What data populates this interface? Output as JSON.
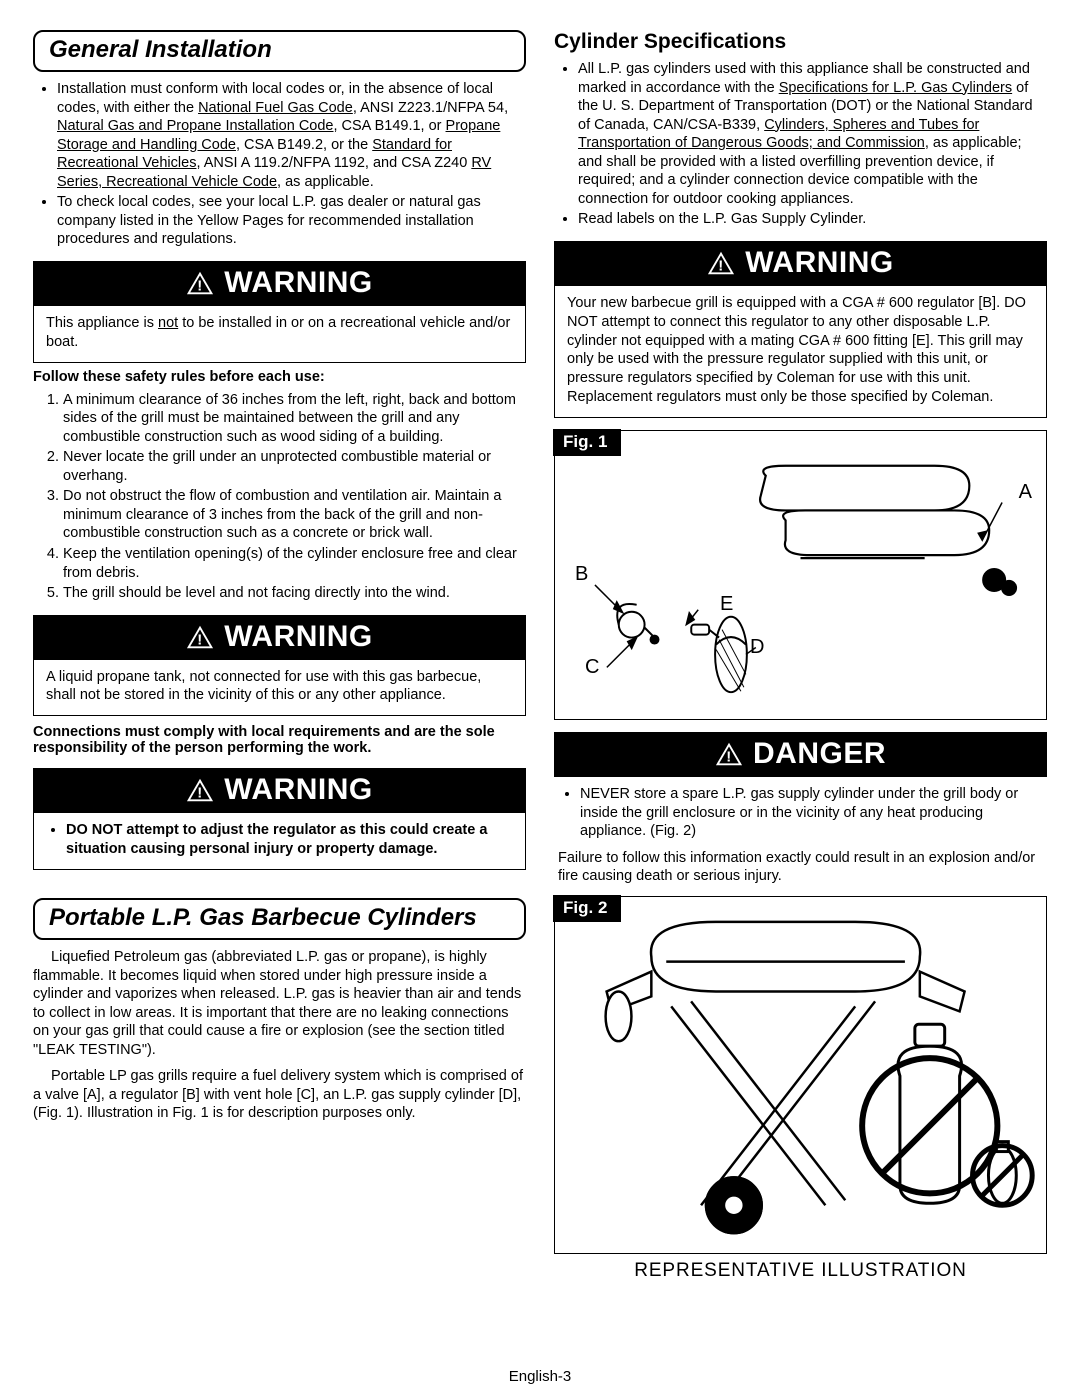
{
  "left": {
    "section1_title": "General Installation",
    "bullets1": [
      "Installation must conform with local codes or, in the absence of local codes, with either the <u>National Fuel Gas Code</u>, ANSI Z223.1/NFPA 54, <u>Natural Gas and Propane Installation Code</u>, CSA B149.1, or <u>Propane Storage and Handling Code</u>, CSA B149.2, or the <u>Standard for Recreational Vehicles</u>, ANSI A 119.2/NFPA 1192, and CSA Z240 <u>RV Series, Recreational Vehicle Code</u>, as applicable.",
      "To check local codes, see your local L.P. gas dealer or natural gas company listed in the Yellow Pages for recommended installation procedures and regulations."
    ],
    "warn1": "This appliance is <u>not</u> to be installed in or on a recreational vehicle and/or boat.",
    "follow_rules_label": "Follow these safety rules before each use:",
    "rules": [
      "A minimum clearance of 36 inches from the left, right, back and bottom sides of the grill must be maintained between the grill and any combustible construction such as wood siding of a building.",
      "Never locate the grill under an unprotected combustible material or overhang.",
      "Do not obstruct the flow of combustion and ventilation air. Maintain a minimum clearance of 3 inches from the back of the grill and non-combustible construction such as a concrete or brick wall.",
      "Keep the ventilation opening(s) of the cylinder enclosure free and clear from debris.",
      "The grill should be level and not facing directly into the wind."
    ],
    "warn2": "A liquid propane tank, not connected for use with this gas barbecue, shall not be stored in the vicinity of this or any other appliance.",
    "comply_text": "Connections must comply with local requirements and are the sole responsibility of the person performing the work.",
    "warn3": "DO NOT attempt to adjust the regulator as this could create a situation causing personal injury or property damage.",
    "section2_title": "Portable L.P. Gas Barbecue Cylinders",
    "lp_para1": "Liquefied Petroleum gas (abbreviated L.P. gas or propane), is highly flammable.  It becomes liquid when stored under high pressure inside a cylinder and vaporizes when released. L.P. gas is heavier than air and tends to collect in low areas. It is important that there are no leaking connections on your gas grill that could cause a fire or explosion (see the section titled \"LEAK TESTING\").",
    "lp_para2": "Portable LP gas grills require a fuel delivery system which is comprised of a valve [A], a regulator [B] with vent hole [C], an L.P. gas supply cylinder [D], (Fig. 1). Illustration in Fig. 1 is for description purposes only."
  },
  "right": {
    "cyl_spec_title": "Cylinder Specifications",
    "cyl_bullets": [
      "All L.P. gas cylinders used with this appliance shall be constructed and marked in accordance with the <u>Specifications for L.P. Gas Cylinders</u> of the U. S. Department of Transportation (DOT) or the National Standard of Canada, CAN/CSA-B339, <u>Cylinders, Spheres and Tubes for Transportation of Dangerous Goods; and Commission</u>, as applicable; and shall be provided with a listed overfilling prevention device, if required; and a cylinder  connection device compatible with the connection for outdoor  cooking appliances.",
      "Read labels on the L.P. Gas Supply Cylinder."
    ],
    "warn4": "Your new barbecue grill is equipped with a CGA # 600 regulator [B].   DO NOT attempt to connect this regulator to any other disposable L.P. cylinder not equipped with a mating CGA # 600 fitting [E].  This grill may only be used with the pressure regulator supplied with this unit, or pressure regulators specified by Coleman for use with this unit.  Replacement regulators must only be those specified by Coleman.",
    "fig1_label": "Fig. 1",
    "fig1_a": "A",
    "fig1_b": "B",
    "fig1_c": "C",
    "fig1_d": "D",
    "fig1_e": "E",
    "danger_label": "DANGER",
    "danger_bullet": "NEVER store a spare L.P. gas supply cylinder under the grill body or inside the grill enclosure or in the vicinity of any heat producing appliance.  (Fig. 2)",
    "danger_para": "Failure to follow this information exactly could result in an explosion and/or fire causing death or serious injury.",
    "fig2_label": "Fig. 2",
    "fig2_caption": "REPRESENTATIVE ILLUSTRATION"
  },
  "warning_label": "WARNING",
  "footer": "English-3"
}
